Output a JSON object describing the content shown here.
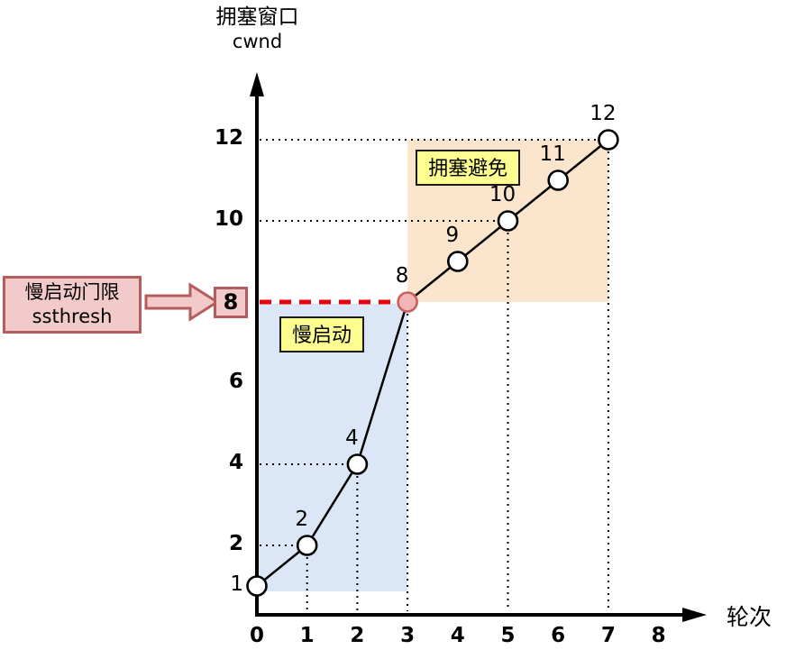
{
  "title": {
    "line1": "拥塞窗口",
    "line2": "cwnd"
  },
  "threshold": {
    "label_line1": "慢启动门限",
    "label_line2": "ssthresh",
    "boxed_value": "8",
    "value": 8
  },
  "colors": {
    "blue_region": "#dbe7f7",
    "orange_region": "#fce5cd",
    "yellow_label": "#fdfd90",
    "pink_fill": "#f2caca",
    "pink_border": "#b65c5c",
    "red_dash": "#e8000b",
    "highlight_point_fill": "#f2b4b4",
    "highlight_point_stroke": "#c95f5f",
    "line": "#000000"
  },
  "chart_data": {
    "type": "line",
    "x": [
      0,
      1,
      2,
      3,
      4,
      5,
      6,
      7
    ],
    "series": [
      {
        "name": "cwnd",
        "values": [
          1,
          2,
          4,
          8,
          9,
          10,
          11,
          12
        ]
      }
    ],
    "point_labels": [
      "",
      "2",
      "4",
      "8",
      "9",
      "10",
      "11",
      "12"
    ],
    "highlight_point_index": 3,
    "title": "拥塞窗口 cwnd",
    "xlabel": "轮次",
    "ylabel": "拥塞窗口 cwnd",
    "xlim": [
      0,
      8
    ],
    "ylim": [
      0,
      13
    ],
    "x_ticks": [
      "0",
      "1",
      "2",
      "3",
      "4",
      "5",
      "6",
      "7",
      "8"
    ],
    "y_ticks": [
      {
        "value": 12,
        "label": "12",
        "bold": true
      },
      {
        "value": 10,
        "label": "10",
        "bold": true
      },
      {
        "value": 6,
        "label": "6",
        "bold": true
      },
      {
        "value": 4,
        "label": "4",
        "bold": true
      },
      {
        "value": 2,
        "label": "2",
        "bold": true
      },
      {
        "value": 1,
        "label": "1",
        "bold": false
      }
    ],
    "ssthresh": 8,
    "guides": {
      "horizontal_at_y": [
        2,
        4,
        10,
        12
      ],
      "vertical_at_x": [
        1,
        2,
        3,
        5,
        7
      ],
      "threshold_dashed_y": 8
    },
    "phases": [
      {
        "label": "慢启动",
        "x_range": [
          0,
          3
        ]
      },
      {
        "label": "拥塞避免",
        "x_range": [
          3,
          7
        ]
      }
    ],
    "legend": "none",
    "grid": "dotted guide lines to labeled points only"
  }
}
